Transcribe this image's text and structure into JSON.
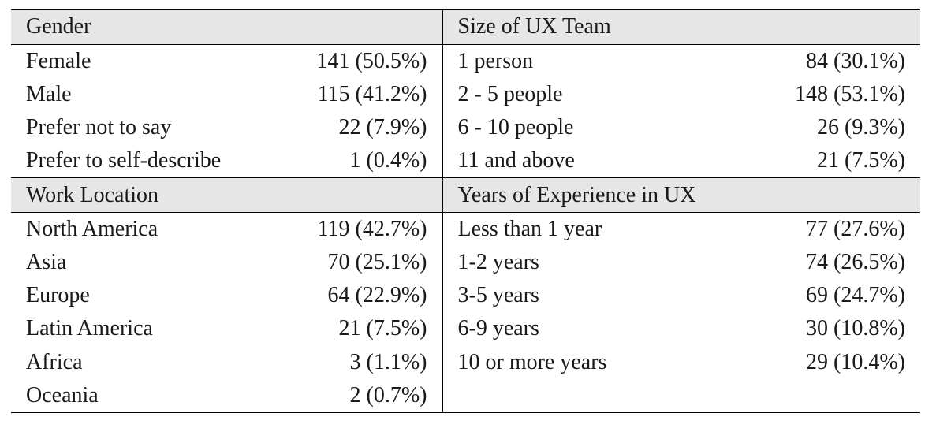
{
  "sections": [
    {
      "left": {
        "title": "Gender",
        "rows": [
          {
            "label": "Female",
            "value": "141 (50.5%)"
          },
          {
            "label": "Male",
            "value": "115 (41.2%)"
          },
          {
            "label": "Prefer not to say",
            "value": "22 (7.9%)"
          },
          {
            "label": "Prefer to self-describe",
            "value": "1 (0.4%)"
          }
        ]
      },
      "right": {
        "title": "Size of UX Team",
        "rows": [
          {
            "label": "1 person",
            "value": "84 (30.1%)"
          },
          {
            "label": "2 - 5 people",
            "value": "148 (53.1%)"
          },
          {
            "label": "6 - 10 people",
            "value": "26 (9.3%)"
          },
          {
            "label": "11 and above",
            "value": "21 (7.5%)"
          }
        ]
      }
    },
    {
      "left": {
        "title": "Work Location",
        "rows": [
          {
            "label": "North America",
            "value": "119 (42.7%)"
          },
          {
            "label": "Asia",
            "value": "70 (25.1%)"
          },
          {
            "label": "Europe",
            "value": "64 (22.9%)"
          },
          {
            "label": "Latin America",
            "value": "21 (7.5%)"
          },
          {
            "label": "Africa",
            "value": "3 (1.1%)"
          },
          {
            "label": "Oceania",
            "value": "2 (0.7%)"
          }
        ]
      },
      "right": {
        "title": "Years of Experience in UX",
        "rows": [
          {
            "label": "Less than 1 year",
            "value": "77 (27.6%)"
          },
          {
            "label": "1-2 years",
            "value": "74 (26.5%)"
          },
          {
            "label": "3-5 years",
            "value": "69 (24.7%)"
          },
          {
            "label": "6-9 years",
            "value": "30 (10.8%)"
          },
          {
            "label": "10 or more years",
            "value": "29 (10.4%)"
          }
        ]
      }
    }
  ]
}
